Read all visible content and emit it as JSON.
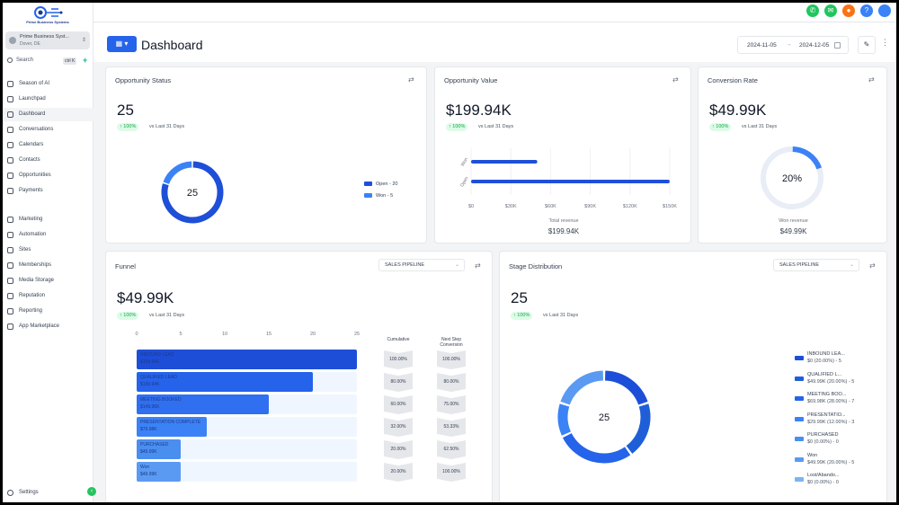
{
  "sidebar": {
    "logo_text": "Prime Business Systems",
    "account_name": "Prime Business Syst...",
    "account_location": "Dover, DE",
    "search_label": "Search",
    "search_shortcut": "ctrl K",
    "items": [
      {
        "label": "Season of AI",
        "icon": "sparkle-icon"
      },
      {
        "label": "Launchpad",
        "icon": "rocket-icon"
      },
      {
        "label": "Dashboard",
        "icon": "grid-icon"
      },
      {
        "label": "Conversations",
        "icon": "chat-icon"
      },
      {
        "label": "Calendars",
        "icon": "calendar-icon"
      },
      {
        "label": "Contacts",
        "icon": "contacts-icon"
      },
      {
        "label": "Opportunities",
        "icon": "target-icon"
      },
      {
        "label": "Payments",
        "icon": "payment-icon"
      },
      {
        "label": "Marketing",
        "icon": "send-icon"
      },
      {
        "label": "Automation",
        "icon": "automation-icon"
      },
      {
        "label": "Sites",
        "icon": "globe-icon"
      },
      {
        "label": "Memberships",
        "icon": "members-icon"
      },
      {
        "label": "Media Storage",
        "icon": "image-icon"
      },
      {
        "label": "Reputation",
        "icon": "star-icon"
      },
      {
        "label": "Reporting",
        "icon": "chart-icon"
      },
      {
        "label": "App Marketplace",
        "icon": "apps-icon"
      }
    ],
    "settings_label": "Settings"
  },
  "topbar": {
    "colors": {
      "phone": "#22c55e",
      "megaphone": "#22c55e",
      "bell": "#f97316",
      "help": "#3b82f6",
      "avatar": "#3b82f6"
    },
    "help_glyph": "?"
  },
  "header": {
    "title": "Dashboard",
    "date_start": "2024-11-05",
    "date_end": "2024-12-05"
  },
  "opportunity_status": {
    "title": "Opportunity Status",
    "value": "25",
    "change": "↑ 100%",
    "compare": "vs Last 31 Days",
    "center": "25",
    "legend": [
      "Open - 20",
      "Won - 5"
    ]
  },
  "opportunity_value": {
    "title": "Opportunity Value",
    "value": "$199.94K",
    "change": "↑ 100%",
    "compare": "vs Last 31 Days",
    "categories": [
      "Won",
      "Open"
    ],
    "x_ticks": [
      "$0",
      "$30K",
      "$60K",
      "$90K",
      "$120K",
      "$150K"
    ],
    "footer_label": "Total revenue",
    "footer_value": "$199.94K"
  },
  "conversion_rate": {
    "title": "Conversion Rate",
    "value": "$49.99K",
    "change": "↑ 100%",
    "compare": "vs Last 31 Days",
    "center": "20%",
    "footer_label": "Won revenue",
    "footer_value": "$49.99K"
  },
  "funnel": {
    "title": "Funnel",
    "pipeline": "SALES PIPELINE",
    "value": "$49.99K",
    "change": "↑ 100%",
    "compare": "vs Last 31 Days",
    "x_ticks": [
      "0",
      "5",
      "10",
      "15",
      "20",
      "25"
    ],
    "col_cumulative": "Cumulative",
    "col_next": "Next Step Conversion",
    "stages": [
      {
        "name": "INBOUND LEAD",
        "amount": "$199.94K",
        "cumulative": "100.00%",
        "next": "100.00%"
      },
      {
        "name": "QUALIFIED LEAD",
        "amount": "$199.94K",
        "cumulative": "80.00%",
        "next": "80.00%"
      },
      {
        "name": "MEETING BOOKED",
        "amount": "$149.96K",
        "cumulative": "60.00%",
        "next": "75.00%"
      },
      {
        "name": "PRESENTATION COMPLETE",
        "amount": "$79.98K",
        "cumulative": "32.00%",
        "next": "53.33%"
      },
      {
        "name": "PURCHASED",
        "amount": "$49.99K",
        "cumulative": "20.00%",
        "next": "62.50%"
      },
      {
        "name": "Won",
        "amount": "$49.99K",
        "cumulative": "20.00%",
        "next": "100.00%"
      }
    ]
  },
  "stage_distribution": {
    "title": "Stage Distribution",
    "pipeline": "SALES PIPELINE",
    "value": "25",
    "change": "↑ 100%",
    "compare": "vs Last 31 Days",
    "center": "25",
    "legend": [
      {
        "name": "INBOUND LEA...",
        "detail": "$0 (20.00%) - 5",
        "color": "#1d4ed8"
      },
      {
        "name": "QUALIFIED L...",
        "detail": "$49.99K (20.00%) - 5",
        "color": "#1e5fd8"
      },
      {
        "name": "MEETING BOO...",
        "detail": "$69.98K (28.00%) - 7",
        "color": "#2563eb"
      },
      {
        "name": "PRESENTATIO...",
        "detail": "$29.99K (12.00%) - 3",
        "color": "#3b82f6"
      },
      {
        "name": "PURCHASED",
        "detail": "$0 (0.00%) - 0",
        "color": "#4a8ef0"
      },
      {
        "name": "Won",
        "detail": "$49.99K (20.00%) - 5",
        "color": "#5a9af2"
      },
      {
        "name": "Lost/Abando...",
        "detail": "$0 (0.00%) - 0",
        "color": "#7db3f5"
      }
    ]
  },
  "chart_data": [
    {
      "type": "pie",
      "title": "Opportunity Status",
      "categories": [
        "Open",
        "Won"
      ],
      "values": [
        20,
        5
      ]
    },
    {
      "type": "bar",
      "title": "Opportunity Value",
      "categories": [
        "Won",
        "Open"
      ],
      "values": [
        49990,
        149950
      ],
      "xlim": [
        0,
        150000
      ],
      "xlabel": "Total revenue"
    },
    {
      "type": "pie",
      "title": "Conversion Rate",
      "categories": [
        "Won",
        "Other"
      ],
      "values": [
        20,
        80
      ]
    },
    {
      "type": "bar",
      "title": "Funnel",
      "categories": [
        "INBOUND LEAD",
        "QUALIFIED LEAD",
        "MEETING BOOKED",
        "PRESENTATION COMPLETE",
        "PURCHASED",
        "Won"
      ],
      "values": [
        25,
        20,
        15,
        8,
        5,
        5
      ],
      "xlim": [
        0,
        25
      ]
    },
    {
      "type": "pie",
      "title": "Stage Distribution",
      "categories": [
        "INBOUND LEAD",
        "QUALIFIED LEAD",
        "MEETING BOOKED",
        "PRESENTATION COMPLETE",
        "PURCHASED",
        "Won",
        "Lost/Abandoned"
      ],
      "values": [
        5,
        5,
        7,
        3,
        0,
        5,
        0
      ]
    }
  ]
}
